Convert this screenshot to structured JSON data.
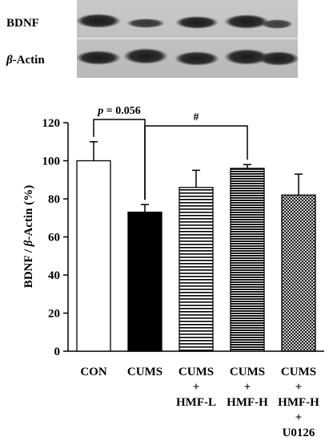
{
  "blot": {
    "bdnf_label": "BDNF",
    "actin_label": "β-Actin"
  },
  "chart_data": {
    "type": "bar",
    "categories": [
      [
        "CON"
      ],
      [
        "CUMS"
      ],
      [
        "CUMS",
        "+",
        "HMF-L"
      ],
      [
        "CUMS",
        "+",
        "HMF-H"
      ],
      [
        "CUMS",
        "+",
        "HMF-H",
        "+",
        "U0126"
      ]
    ],
    "values": [
      100,
      73,
      86,
      96,
      82
    ],
    "errors": [
      10,
      4,
      9,
      2,
      11
    ],
    "fills": [
      "white",
      "black",
      "horizontal-lines",
      "horizontal-lines-dense",
      "crosshatch"
    ],
    "ylabel": "BDNF / β-Actin (%)",
    "ylim": [
      0,
      120
    ],
    "yticks": [
      0,
      20,
      40,
      60,
      80,
      100,
      120
    ],
    "annotations": [
      {
        "text": "p = 0.056",
        "from": 0,
        "to": 1
      },
      {
        "text": "#",
        "from": 1,
        "to": 3
      }
    ],
    "grid": false
  }
}
